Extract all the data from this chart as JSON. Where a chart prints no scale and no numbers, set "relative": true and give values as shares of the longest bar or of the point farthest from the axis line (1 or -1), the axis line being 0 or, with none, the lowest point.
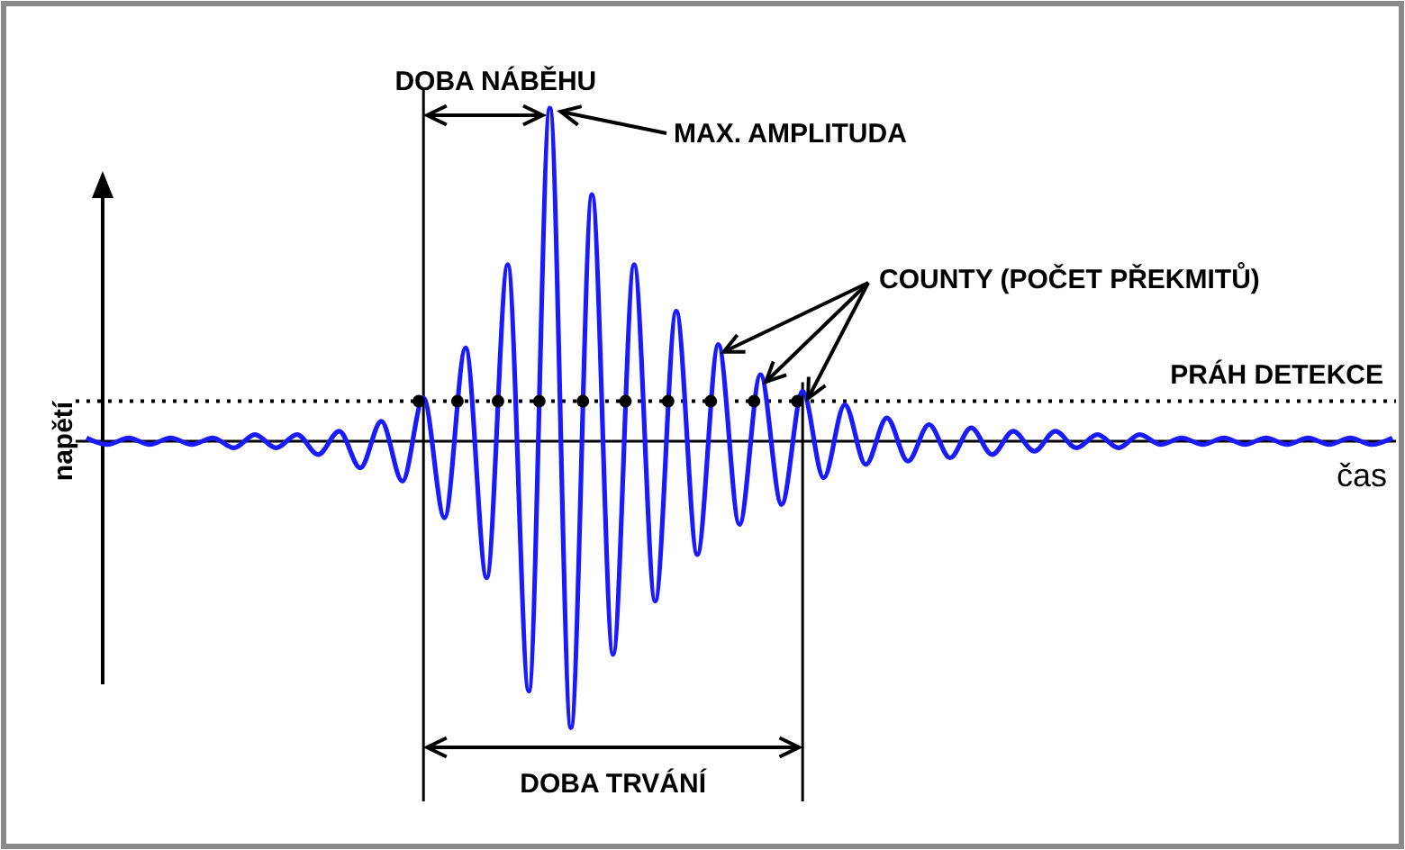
{
  "chart_data": {
    "type": "line",
    "relative": true,
    "xlabel": "čas",
    "ylabel": "napětí",
    "categories": [
      null,
      null,
      null,
      null,
      null,
      null,
      null,
      null,
      null,
      null,
      null,
      null,
      null,
      null,
      null,
      null,
      null,
      null,
      null,
      null,
      null,
      null,
      null,
      null,
      null,
      null,
      null,
      null,
      null,
      null,
      null,
      null,
      null,
      null,
      null,
      null,
      null,
      null,
      null,
      null,
      null,
      null,
      null,
      null,
      null,
      null,
      null,
      null,
      null,
      null,
      null,
      null,
      null,
      null,
      null,
      null,
      null,
      null,
      null,
      null,
      null,
      null,
      null
    ],
    "series": [
      {
        "color": "#1a1aff",
        "values": [
          0.01,
          -0.01,
          0.01,
          -0.01,
          0.01,
          -0.01,
          0.01,
          -0.02,
          0.02,
          -0.02,
          0.02,
          -0.04,
          0.03,
          -0.08,
          0.06,
          -0.12,
          0.13,
          -0.23,
          0.28,
          -0.41,
          0.53,
          -0.75,
          1,
          -0.86,
          0.74,
          -0.64,
          0.53,
          -0.48,
          0.39,
          -0.34,
          0.29,
          -0.25,
          0.2,
          -0.19,
          0.15,
          -0.11,
          0.11,
          -0.07,
          0.07,
          -0.06,
          0.05,
          -0.05,
          0.04,
          -0.04,
          0.03,
          -0.03,
          0.03,
          -0.02,
          0.02,
          -0.02,
          0.02,
          -0.01,
          0.01,
          -0.01,
          0.01,
          -0.01,
          0.01,
          -0.01,
          0.01,
          -0.01,
          0.01,
          -0.01,
          0.01
        ]
      }
    ],
    "ref_lines": [
      {
        "axis": "y",
        "value": 0.12,
        "label": "PRÁH DETEKCE",
        "color": "#000000",
        "line_style": "dotted"
      }
    ],
    "annotations": [
      "DOBA NÁBĚHU",
      "MAX. AMPLITUDA",
      "COUNTY (POČET PŘEKMITŮ)",
      "DOBA TRVÁNÍ"
    ],
    "marker": "none",
    "line_style": "solid"
  }
}
